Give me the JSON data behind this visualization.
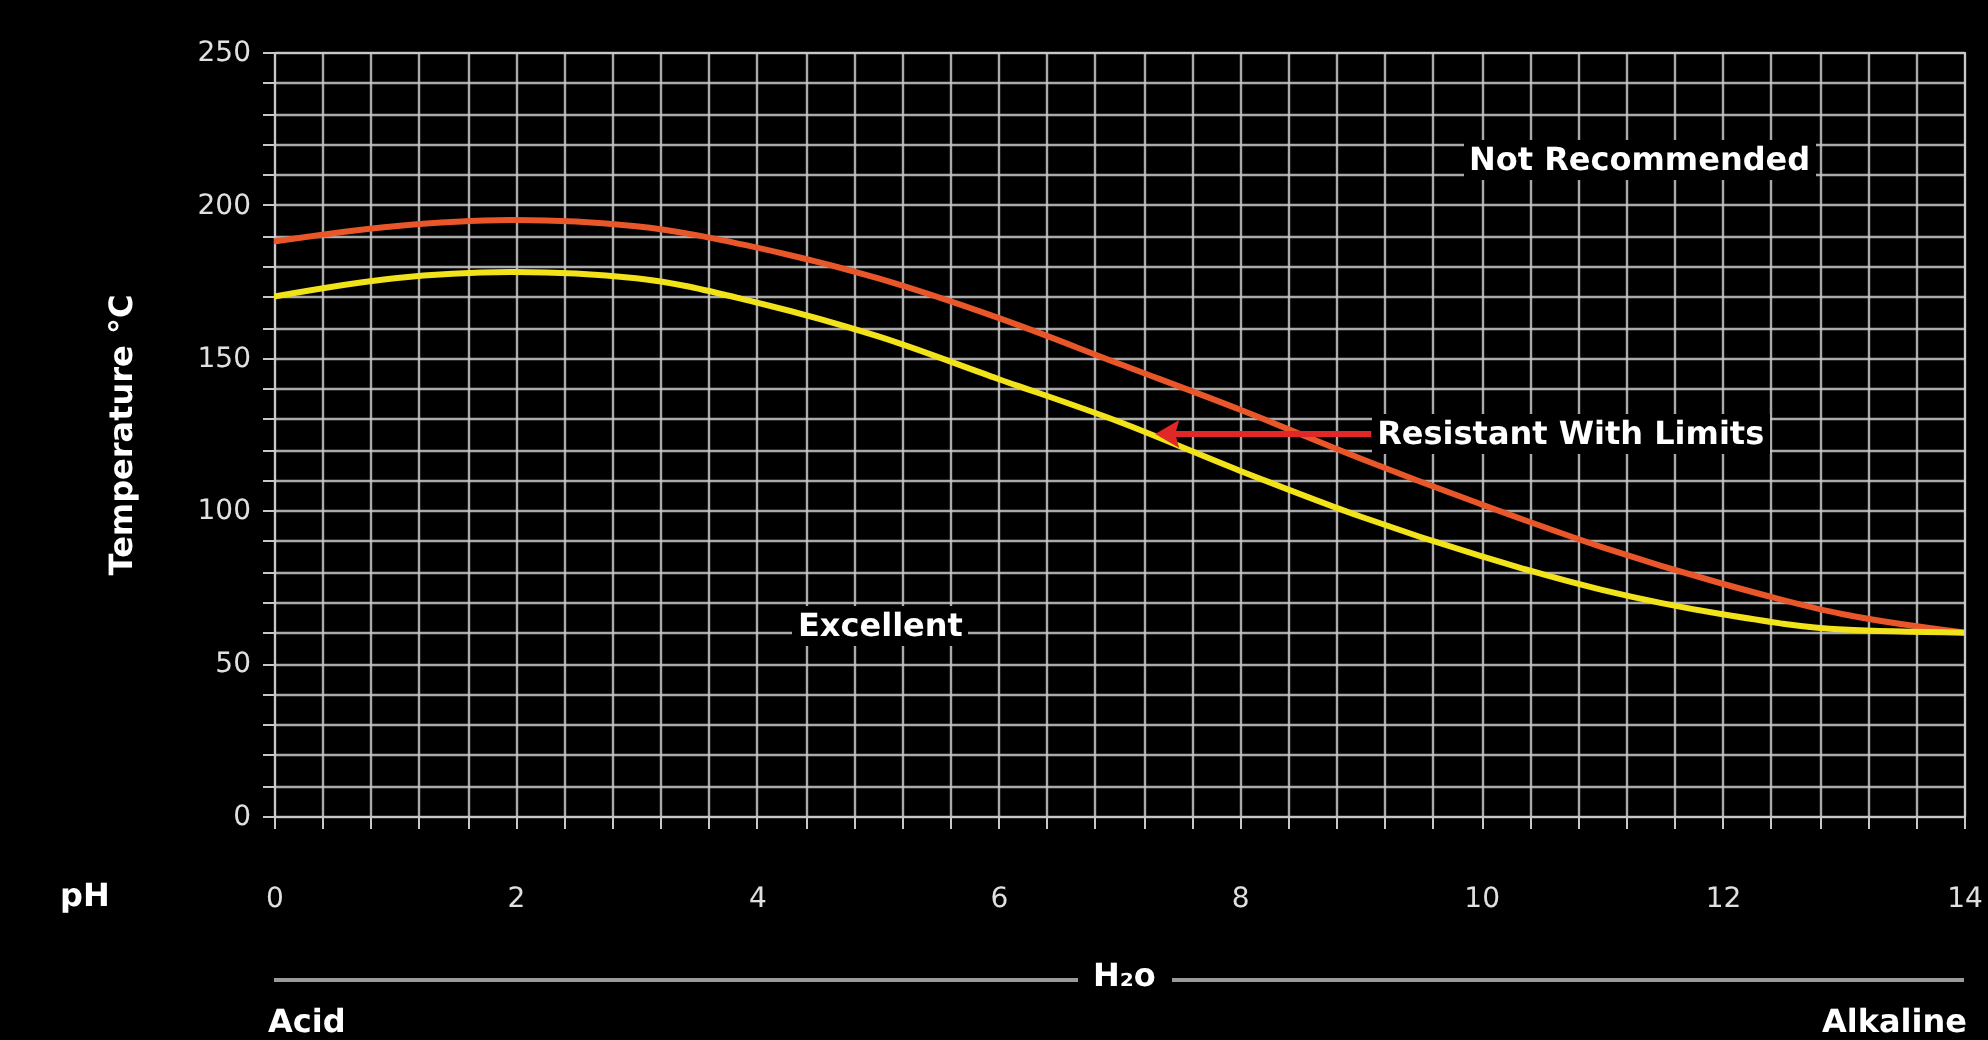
{
  "chart_data": {
    "type": "line",
    "xlabel": "pH",
    "ylabel": "Temperature °C",
    "x": [
      0,
      1,
      2,
      3,
      4,
      5,
      6,
      7,
      8,
      9,
      10,
      11,
      12,
      13,
      14
    ],
    "series": [
      {
        "color": "#e8562a",
        "values": [
          188,
          193,
          195,
          193,
          186,
          176,
          163,
          148,
          133,
          117,
          102,
          88,
          76,
          66,
          60
        ]
      },
      {
        "color": "#f2e21a",
        "values": [
          170,
          176,
          178,
          176,
          168,
          157,
          143,
          129,
          113,
          98,
          85,
          74,
          66,
          61,
          60
        ]
      }
    ],
    "xlim": [
      0,
      14
    ],
    "xticks": [
      0,
      {
        "value": 0.4,
        "label": null
      },
      {
        "value": 0.8,
        "label": null
      },
      {
        "value": 1.2,
        "label": null
      },
      {
        "value": 1.6,
        "label": null
      },
      2,
      {
        "value": 2.4,
        "label": null
      },
      {
        "value": 2.8,
        "label": null
      },
      {
        "value": 3.2,
        "label": null
      },
      {
        "value": 3.6,
        "label": null
      },
      4,
      {
        "value": 4.4,
        "label": null
      },
      {
        "value": 4.8,
        "label": null
      },
      {
        "value": 5.2,
        "label": null
      },
      {
        "value": 5.6,
        "label": null
      },
      6,
      {
        "value": 6.4,
        "label": null
      },
      {
        "value": 6.8,
        "label": null
      },
      {
        "value": 7.2,
        "label": null
      },
      {
        "value": 7.6,
        "label": null
      },
      8,
      {
        "value": 8.4,
        "label": null
      },
      {
        "value": 8.8,
        "label": null
      },
      {
        "value": 9.2,
        "label": null
      },
      {
        "value": 9.6,
        "label": null
      },
      10,
      {
        "value": 10.4,
        "label": null
      },
      {
        "value": 10.8,
        "label": null
      },
      {
        "value": 11.2,
        "label": null
      },
      {
        "value": 11.6,
        "label": null
      },
      12,
      {
        "value": 12.4,
        "label": null
      },
      {
        "value": 12.8,
        "label": null
      },
      {
        "value": 13.2,
        "label": null
      },
      {
        "value": 13.6,
        "label": null
      },
      14
    ],
    "ylim": [
      0,
      250
    ],
    "yticks": [
      0,
      {
        "value": 10,
        "label": null
      },
      {
        "value": 20,
        "label": null
      },
      {
        "value": 30,
        "label": null
      },
      {
        "value": 40,
        "label": null
      },
      50,
      {
        "value": 60,
        "label": null
      },
      {
        "value": 70,
        "label": null
      },
      {
        "value": 80,
        "label": null
      },
      {
        "value": 90,
        "label": null
      },
      100,
      {
        "value": 110,
        "label": null
      },
      {
        "value": 120,
        "label": null
      },
      {
        "value": 130,
        "label": null
      },
      {
        "value": 140,
        "label": null
      },
      150,
      {
        "value": 160,
        "label": null
      },
      {
        "value": 170,
        "label": null
      },
      {
        "value": 180,
        "label": null
      },
      {
        "value": 190,
        "label": null
      },
      200,
      {
        "value": 210,
        "label": null
      },
      {
        "value": 220,
        "label": null
      },
      {
        "value": 230,
        "label": null
      },
      {
        "value": 240,
        "label": null
      },
      250
    ],
    "grid": true,
    "annotations": [
      "Not Recommended",
      {
        "text": "Resistant With Limits",
        "x": 7.3,
        "y": 125
      },
      "Excellent",
      "H₂o",
      "Acid",
      "Alkaline"
    ]
  }
}
